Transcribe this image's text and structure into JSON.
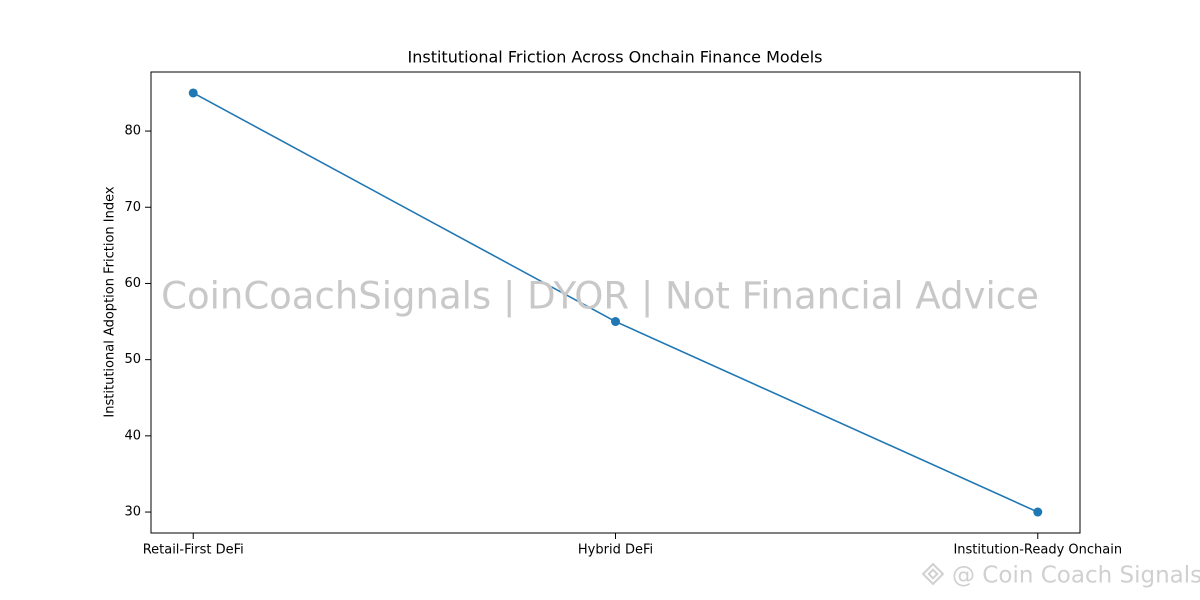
{
  "chart_data": {
    "type": "line",
    "title": "Institutional Friction Across Onchain Finance Models",
    "ylabel": "Institutional Adoption Friction Index",
    "categories": [
      "Retail-First DeFi",
      "Hybrid DeFi",
      "Institution-Ready Onchain"
    ],
    "values": [
      85,
      55,
      30
    ],
    "color": "#1f77b4",
    "ylim": [
      27.25,
      87.75
    ],
    "yticks": [
      30,
      40,
      50,
      60,
      70,
      80
    ],
    "grid": false,
    "watermark": "CoinCoachSignals | DYOR | Not Financial Advice",
    "credit": "@ Coin Coach Signals"
  }
}
